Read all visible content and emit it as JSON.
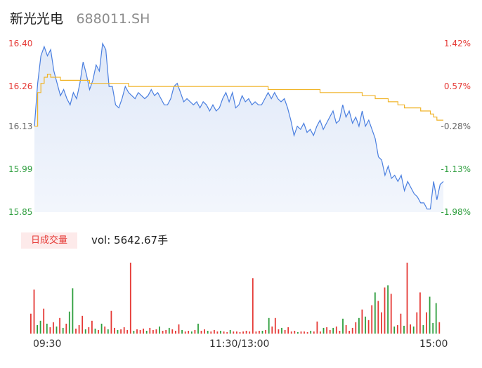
{
  "header": {
    "name": "新光光电",
    "code": "688011.SH"
  },
  "colors": {
    "up": "#e53935",
    "down": "#2e9e3e",
    "price_line": "#4a7fe0",
    "avg_line": "#f0b429",
    "neutral": "#888888"
  },
  "volume_panel": {
    "label": "日成交量",
    "text": "vol: 5642.67手"
  },
  "chart_data": [
    {
      "type": "line",
      "name": "intraday",
      "prev_close": 16.17,
      "ylim": [
        15.85,
        16.4
      ],
      "y_ticks": [
        "16.40",
        "16.26",
        "16.13",
        "15.99",
        "15.85"
      ],
      "pct_ticks": [
        "1.42%",
        "0.57%",
        "-0.28%",
        "-1.13%",
        "-1.98%"
      ],
      "x_ticks": [
        "09:30",
        "11:30/13:00",
        "15:00"
      ],
      "series": [
        {
          "role": "price",
          "values": [
            16.13,
            16.27,
            16.36,
            16.39,
            16.36,
            16.38,
            16.31,
            16.27,
            16.23,
            16.25,
            16.22,
            16.2,
            16.24,
            16.22,
            16.27,
            16.34,
            16.3,
            16.25,
            16.28,
            16.33,
            16.31,
            16.4,
            16.38,
            16.26,
            16.26,
            16.2,
            16.19,
            16.22,
            16.26,
            16.24,
            16.23,
            16.22,
            16.24,
            16.23,
            16.22,
            16.23,
            16.25,
            16.23,
            16.24,
            16.22,
            16.2,
            16.2,
            16.22,
            16.26,
            16.27,
            16.24,
            16.21,
            16.22,
            16.21,
            16.2,
            16.21,
            16.19,
            16.21,
            16.2,
            16.18,
            16.2,
            16.18,
            16.19,
            16.22,
            16.24,
            16.21,
            16.24,
            16.19,
            16.2,
            16.23,
            16.21,
            16.22,
            16.2,
            16.21,
            16.2,
            16.2,
            16.22,
            16.24,
            16.22,
            16.24,
            16.22,
            16.21,
            16.22,
            16.19,
            16.15,
            16.1,
            16.13,
            16.12,
            16.14,
            16.11,
            16.12,
            16.1,
            16.13,
            16.15,
            16.12,
            16.14,
            16.16,
            16.18,
            16.14,
            16.15,
            16.2,
            16.16,
            16.18,
            16.14,
            16.16,
            16.13,
            16.18,
            16.13,
            16.15,
            16.12,
            16.09,
            16.03,
            16.02,
            15.97,
            16.0,
            15.96,
            15.97,
            15.95,
            15.97,
            15.92,
            15.95,
            15.93,
            15.91,
            15.9,
            15.88,
            15.88,
            15.86,
            15.86,
            15.95,
            15.89,
            15.94,
            15.95
          ]
        },
        {
          "role": "average",
          "values": [
            16.13,
            16.24,
            16.27,
            16.29,
            16.3,
            16.29,
            16.29,
            16.29,
            16.28,
            16.28,
            16.28,
            16.28,
            16.28,
            16.28,
            16.28,
            16.28,
            16.28,
            16.27,
            16.27,
            16.27,
            16.27,
            16.27,
            16.27,
            16.27,
            16.27,
            16.27,
            16.27,
            16.27,
            16.27,
            16.26,
            16.26,
            16.26,
            16.26,
            16.26,
            16.26,
            16.26,
            16.26,
            16.26,
            16.26,
            16.26,
            16.26,
            16.26,
            16.26,
            16.26,
            16.26,
            16.26,
            16.26,
            16.26,
            16.26,
            16.26,
            16.26,
            16.26,
            16.26,
            16.26,
            16.26,
            16.26,
            16.26,
            16.26,
            16.26,
            16.26,
            16.26,
            16.26,
            16.26,
            16.26,
            16.26,
            16.26,
            16.26,
            16.26,
            16.26,
            16.26,
            16.26,
            16.26,
            16.25,
            16.25,
            16.25,
            16.25,
            16.25,
            16.25,
            16.25,
            16.25,
            16.25,
            16.25,
            16.25,
            16.25,
            16.25,
            16.25,
            16.25,
            16.25,
            16.24,
            16.24,
            16.24,
            16.24,
            16.24,
            16.24,
            16.24,
            16.24,
            16.24,
            16.24,
            16.24,
            16.24,
            16.24,
            16.23,
            16.23,
            16.23,
            16.23,
            16.22,
            16.22,
            16.22,
            16.22,
            16.21,
            16.21,
            16.21,
            16.2,
            16.2,
            16.19,
            16.19,
            16.19,
            16.19,
            16.19,
            16.18,
            16.18,
            16.18,
            16.17,
            16.16,
            16.15,
            16.15,
            16.15
          ]
        }
      ]
    },
    {
      "type": "bar",
      "name": "volume",
      "bars": [
        {
          "v": 28,
          "d": "up"
        },
        {
          "v": 62,
          "d": "up"
        },
        {
          "v": 12,
          "d": "down"
        },
        {
          "v": 18,
          "d": "down"
        },
        {
          "v": 35,
          "d": "up"
        },
        {
          "v": 14,
          "d": "down"
        },
        {
          "v": 9,
          "d": "up"
        },
        {
          "v": 16,
          "d": "up"
        },
        {
          "v": 10,
          "d": "down"
        },
        {
          "v": 22,
          "d": "up"
        },
        {
          "v": 8,
          "d": "down"
        },
        {
          "v": 14,
          "d": "up"
        },
        {
          "v": 31,
          "d": "down"
        },
        {
          "v": 64,
          "d": "down"
        },
        {
          "v": 7,
          "d": "up"
        },
        {
          "v": 12,
          "d": "up"
        },
        {
          "v": 25,
          "d": "up"
        },
        {
          "v": 6,
          "d": "down"
        },
        {
          "v": 9,
          "d": "up"
        },
        {
          "v": 18,
          "d": "up"
        },
        {
          "v": 7,
          "d": "down"
        },
        {
          "v": 5,
          "d": "up"
        },
        {
          "v": 14,
          "d": "down"
        },
        {
          "v": 10,
          "d": "up"
        },
        {
          "v": 6,
          "d": "down"
        },
        {
          "v": 32,
          "d": "up"
        },
        {
          "v": 8,
          "d": "up"
        },
        {
          "v": 5,
          "d": "down"
        },
        {
          "v": 6,
          "d": "up"
        },
        {
          "v": 9,
          "d": "up"
        },
        {
          "v": 5,
          "d": "up"
        },
        {
          "v": 100,
          "d": "up"
        },
        {
          "v": 4,
          "d": "down"
        },
        {
          "v": 6,
          "d": "up"
        },
        {
          "v": 5,
          "d": "up"
        },
        {
          "v": 7,
          "d": "up"
        },
        {
          "v": 4,
          "d": "down"
        },
        {
          "v": 8,
          "d": "up"
        },
        {
          "v": 5,
          "d": "up"
        },
        {
          "v": 6,
          "d": "up"
        },
        {
          "v": 10,
          "d": "down"
        },
        {
          "v": 4,
          "d": "up"
        },
        {
          "v": 5,
          "d": "up"
        },
        {
          "v": 8,
          "d": "down"
        },
        {
          "v": 6,
          "d": "up"
        },
        {
          "v": 4,
          "d": "up"
        },
        {
          "v": 13,
          "d": "up"
        },
        {
          "v": 5,
          "d": "down"
        },
        {
          "v": 3,
          "d": "up"
        },
        {
          "v": 4,
          "d": "up"
        },
        {
          "v": 3,
          "d": "down"
        },
        {
          "v": 5,
          "d": "up"
        },
        {
          "v": 14,
          "d": "down"
        },
        {
          "v": 4,
          "d": "up"
        },
        {
          "v": 6,
          "d": "up"
        },
        {
          "v": 4,
          "d": "down"
        },
        {
          "v": 3,
          "d": "up"
        },
        {
          "v": 5,
          "d": "up"
        },
        {
          "v": 3,
          "d": "up"
        },
        {
          "v": 4,
          "d": "down"
        },
        {
          "v": 3,
          "d": "up"
        },
        {
          "v": 2,
          "d": "up"
        },
        {
          "v": 5,
          "d": "down"
        },
        {
          "v": 3,
          "d": "up"
        },
        {
          "v": 3,
          "d": "up"
        },
        {
          "v": 2,
          "d": "up"
        },
        {
          "v": 3,
          "d": "up"
        },
        {
          "v": 4,
          "d": "up"
        },
        {
          "v": 3,
          "d": "up"
        },
        {
          "v": 78,
          "d": "up"
        },
        {
          "v": 3,
          "d": "up"
        },
        {
          "v": 4,
          "d": "up"
        },
        {
          "v": 4,
          "d": "down"
        },
        {
          "v": 5,
          "d": "up"
        },
        {
          "v": 22,
          "d": "down"
        },
        {
          "v": 10,
          "d": "up"
        },
        {
          "v": 22,
          "d": "up"
        },
        {
          "v": 6,
          "d": "up"
        },
        {
          "v": 8,
          "d": "down"
        },
        {
          "v": 5,
          "d": "up"
        },
        {
          "v": 9,
          "d": "up"
        },
        {
          "v": 3,
          "d": "up"
        },
        {
          "v": 4,
          "d": "up"
        },
        {
          "v": 2,
          "d": "down"
        },
        {
          "v": 3,
          "d": "up"
        },
        {
          "v": 3,
          "d": "up"
        },
        {
          "v": 2,
          "d": "up"
        },
        {
          "v": 4,
          "d": "down"
        },
        {
          "v": 3,
          "d": "up"
        },
        {
          "v": 17,
          "d": "up"
        },
        {
          "v": 3,
          "d": "up"
        },
        {
          "v": 8,
          "d": "down"
        },
        {
          "v": 9,
          "d": "up"
        },
        {
          "v": 5,
          "d": "up"
        },
        {
          "v": 8,
          "d": "down"
        },
        {
          "v": 10,
          "d": "up"
        },
        {
          "v": 4,
          "d": "up"
        },
        {
          "v": 21,
          "d": "down"
        },
        {
          "v": 12,
          "d": "up"
        },
        {
          "v": 4,
          "d": "up"
        },
        {
          "v": 8,
          "d": "up"
        },
        {
          "v": 16,
          "d": "up"
        },
        {
          "v": 22,
          "d": "down"
        },
        {
          "v": 34,
          "d": "up"
        },
        {
          "v": 24,
          "d": "down"
        },
        {
          "v": 19,
          "d": "up"
        },
        {
          "v": 40,
          "d": "up"
        },
        {
          "v": 58,
          "d": "down"
        },
        {
          "v": 46,
          "d": "up"
        },
        {
          "v": 30,
          "d": "up"
        },
        {
          "v": 65,
          "d": "up"
        },
        {
          "v": 68,
          "d": "down"
        },
        {
          "v": 56,
          "d": "up"
        },
        {
          "v": 10,
          "d": "down"
        },
        {
          "v": 12,
          "d": "up"
        },
        {
          "v": 28,
          "d": "up"
        },
        {
          "v": 11,
          "d": "down"
        },
        {
          "v": 100,
          "d": "up"
        },
        {
          "v": 13,
          "d": "up"
        },
        {
          "v": 10,
          "d": "down"
        },
        {
          "v": 30,
          "d": "up"
        },
        {
          "v": 58,
          "d": "up"
        },
        {
          "v": 12,
          "d": "down"
        },
        {
          "v": 30,
          "d": "up"
        },
        {
          "v": 52,
          "d": "down"
        },
        {
          "v": 15,
          "d": "down"
        },
        {
          "v": 43,
          "d": "down"
        },
        {
          "v": 16,
          "d": "up"
        }
      ]
    }
  ]
}
